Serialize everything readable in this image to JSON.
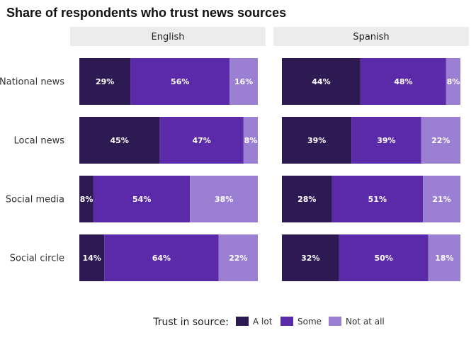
{
  "chart_data": {
    "type": "bar",
    "orientation": "horizontal",
    "stacked": "percent",
    "title": "Share of respondents who trust news sources",
    "categories": [
      "National news",
      "Local news",
      "Social media",
      "Social circle"
    ],
    "facets": [
      {
        "name": "English",
        "series": [
          {
            "name": "A lot",
            "values": [
              29,
              45,
              8,
              14
            ]
          },
          {
            "name": "Some",
            "values": [
              56,
              47,
              54,
              64
            ]
          },
          {
            "name": "Not at all",
            "values": [
              16,
              8,
              38,
              22
            ]
          }
        ]
      },
      {
        "name": "Spanish",
        "series": [
          {
            "name": "A lot",
            "values": [
              44,
              39,
              28,
              32
            ]
          },
          {
            "name": "Some",
            "values": [
              48,
              39,
              51,
              50
            ]
          },
          {
            "name": "Not at all",
            "values": [
              8,
              22,
              21,
              18
            ]
          }
        ]
      }
    ],
    "legend": {
      "title": "Trust in source:",
      "position": "bottom"
    },
    "colors": {
      "A lot": "#2d1a53",
      "Some": "#5b2aa8",
      "Not at all": "#9b7fd2"
    },
    "strip_color": "#ececec",
    "grid": false
  }
}
